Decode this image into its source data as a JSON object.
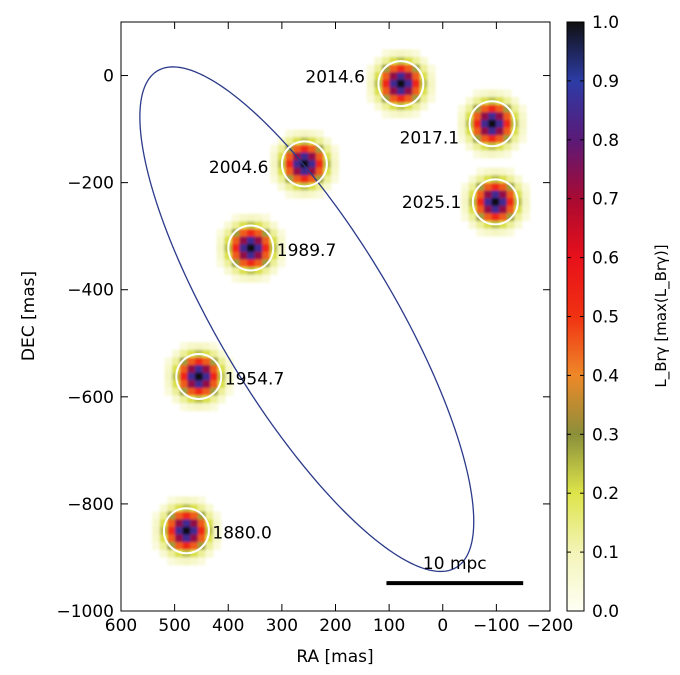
{
  "chart_data": {
    "type": "scatter",
    "xlabel": "RA [mas]",
    "ylabel": "DEC [mas]",
    "xlim": [
      600,
      -200
    ],
    "ylim": [
      -1000,
      100
    ],
    "xticks": [
      600,
      500,
      400,
      300,
      200,
      100,
      0,
      -100,
      -200
    ],
    "xtick_labels": [
      "600",
      "500",
      "400",
      "300",
      "200",
      "100",
      "0",
      "−100",
      "−200"
    ],
    "yticks": [
      0,
      -200,
      -400,
      -600,
      -800,
      -1000
    ],
    "ytick_labels": [
      "0",
      "−200",
      "−400",
      "−600",
      "−800",
      "−1000"
    ],
    "points": [
      {
        "label": "1880.0",
        "x": 478,
        "y": -850
      },
      {
        "label": "1954.7",
        "x": 455,
        "y": -562
      },
      {
        "label": "1989.7",
        "x": 358,
        "y": -322
      },
      {
        "label": "2004.6",
        "x": 258,
        "y": -165
      },
      {
        "label": "2014.6",
        "x": 78,
        "y": -15
      },
      {
        "label": "2017.1",
        "x": -92,
        "y": -90
      },
      {
        "label": "2025.1",
        "x": -98,
        "y": -236
      }
    ],
    "orbit": {
      "center_x": 253.5,
      "center_y": -455,
      "semi_major": 541,
      "semi_minor": 162,
      "angle_deg": 59
    },
    "scale_bar": {
      "label": "10 mpc",
      "x_start": 105,
      "x_end": -150,
      "y": -948
    },
    "colorbar": {
      "label": "L_Brγ [max(L_Brγ)]",
      "min": 0.0,
      "max": 1.0,
      "ticks": [
        0.0,
        0.1,
        0.2,
        0.3,
        0.4,
        0.5,
        0.6,
        0.7,
        0.8,
        0.9,
        1.0
      ],
      "tick_labels": [
        "0.0",
        "0.1",
        "0.2",
        "0.3",
        "0.4",
        "0.5",
        "0.6",
        "0.7",
        "0.8",
        "0.9",
        "1.0"
      ],
      "colormap": [
        {
          "v": 0.0,
          "c": "#fffff5"
        },
        {
          "v": 0.1,
          "c": "#f3f4b7"
        },
        {
          "v": 0.2,
          "c": "#dde44a"
        },
        {
          "v": 0.3,
          "c": "#8b8f3a"
        },
        {
          "v": 0.4,
          "c": "#ee8828"
        },
        {
          "v": 0.5,
          "c": "#f03212"
        },
        {
          "v": 0.6,
          "c": "#e8101a"
        },
        {
          "v": 0.7,
          "c": "#a80a32"
        },
        {
          "v": 0.8,
          "c": "#5a1a78"
        },
        {
          "v": 0.9,
          "c": "#2c3ca6"
        },
        {
          "v": 1.0,
          "c": "#101010"
        }
      ]
    }
  }
}
